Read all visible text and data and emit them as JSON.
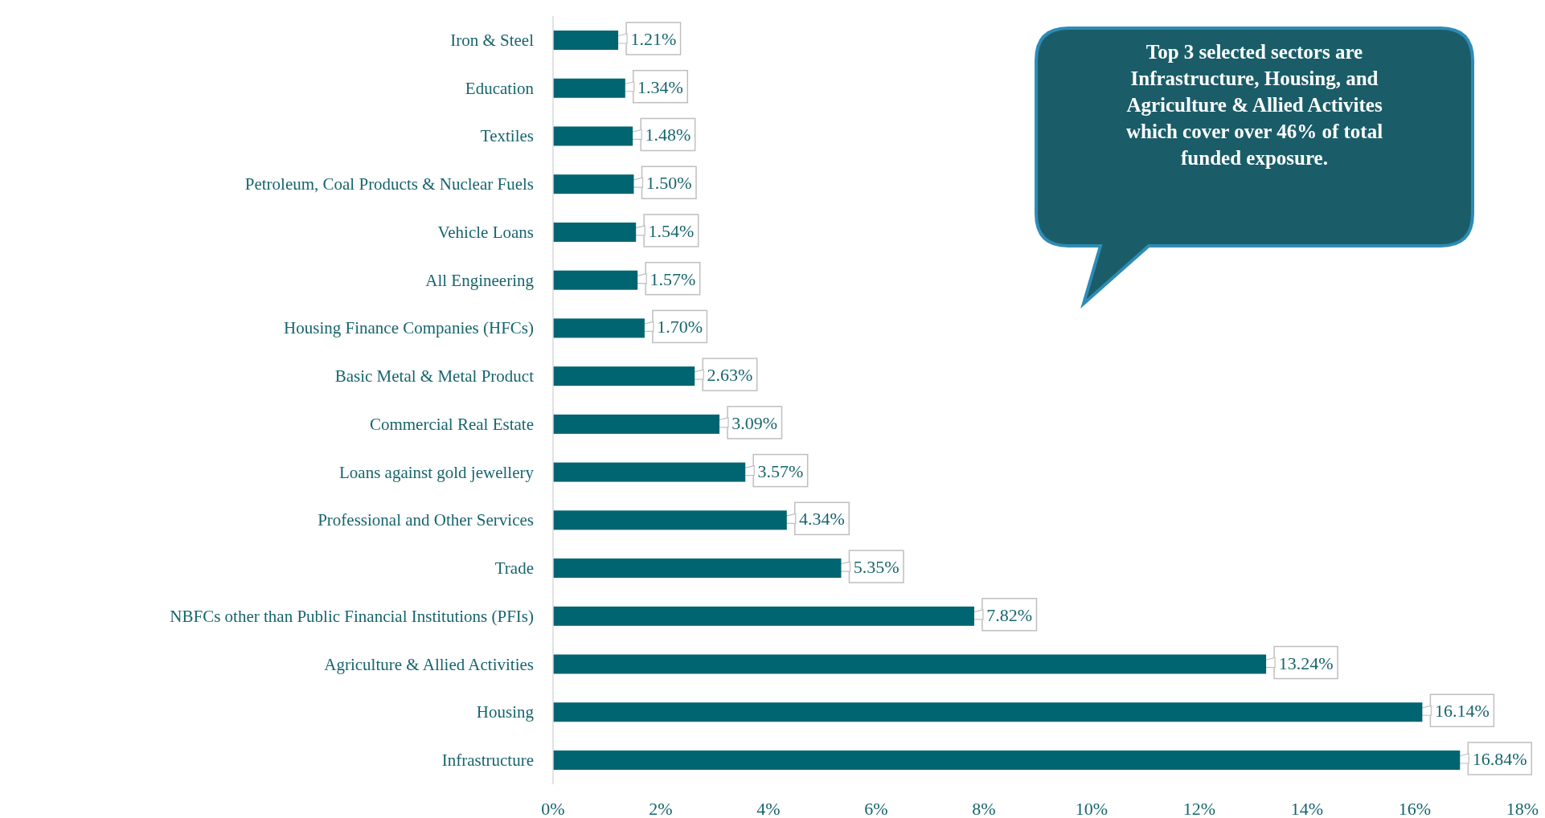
{
  "chart_data": {
    "type": "bar",
    "orientation": "horizontal",
    "categories": [
      "Iron & Steel",
      "Education",
      "Textiles",
      "Petroleum, Coal Products & Nuclear Fuels",
      "Vehicle Loans",
      "All Engineering",
      "Housing Finance Companies (HFCs)",
      "Basic Metal & Metal Product",
      "Commercial Real Estate",
      "Loans against gold jewellery",
      "Professional and Other Services",
      "Trade",
      "NBFCs other than Public Financial Institutions (PFIs)",
      "Agriculture & Allied Activities",
      "Housing",
      "Infrastructure"
    ],
    "values": [
      1.21,
      1.34,
      1.48,
      1.5,
      1.54,
      1.57,
      1.7,
      2.63,
      3.09,
      3.57,
      4.34,
      5.35,
      7.82,
      13.24,
      16.14,
      16.84
    ],
    "value_labels": [
      "1.21%",
      "1.34%",
      "1.48%",
      "1.50%",
      "1.54%",
      "1.57%",
      "1.70%",
      "2.63%",
      "3.09%",
      "3.57%",
      "4.34%",
      "5.35%",
      "7.82%",
      "13.24%",
      "16.14%",
      "16.84%"
    ],
    "color": "#006570",
    "xlim": [
      0,
      18
    ],
    "xticks": [
      {
        "value": 0,
        "label": "0%"
      },
      {
        "value": 2,
        "label": "2%"
      },
      {
        "value": 4,
        "label": "4%"
      },
      {
        "value": 6,
        "label": "6%"
      },
      {
        "value": 8,
        "label": "8%"
      },
      {
        "value": 10,
        "label": "10%"
      },
      {
        "value": 12,
        "label": "12%"
      },
      {
        "value": 14,
        "label": "14%"
      },
      {
        "value": 16,
        "label": "16%"
      },
      {
        "value": 18,
        "label": "18%"
      }
    ],
    "grid": false,
    "annotations": [
      "Top 3 selected sectors are Infrastructure, Housing, and Agriculture & Allied Activites which cover over 46% of total funded exposure."
    ]
  }
}
